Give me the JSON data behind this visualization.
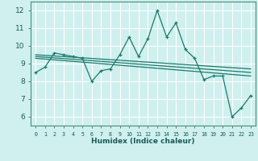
{
  "title": "",
  "xlabel": "Humidex (Indice chaleur)",
  "ylabel": "",
  "bg_color": "#cff0ee",
  "grid_color": "#ffffff",
  "line_color": "#1a7a6e",
  "xlim": [
    -0.5,
    23.5
  ],
  "ylim": [
    5.5,
    12.5
  ],
  "xticks": [
    0,
    1,
    2,
    3,
    4,
    5,
    6,
    7,
    8,
    9,
    10,
    11,
    12,
    13,
    14,
    15,
    16,
    17,
    18,
    19,
    20,
    21,
    22,
    23
  ],
  "yticks": [
    6,
    7,
    8,
    9,
    10,
    11,
    12
  ],
  "main_x": [
    0,
    1,
    2,
    3,
    4,
    5,
    6,
    7,
    8,
    9,
    10,
    11,
    12,
    13,
    14,
    15,
    16,
    17,
    18,
    19,
    20,
    21,
    22,
    23
  ],
  "main_y": [
    8.5,
    8.8,
    9.6,
    9.5,
    9.4,
    9.3,
    8.0,
    8.6,
    8.7,
    9.5,
    10.5,
    9.4,
    10.4,
    12.0,
    10.5,
    11.3,
    9.8,
    9.3,
    8.1,
    8.3,
    8.3,
    6.0,
    6.5,
    7.2
  ],
  "reg_lines": [
    {
      "x": [
        0,
        23
      ],
      "y": [
        9.3,
        8.3
      ]
    },
    {
      "x": [
        0,
        23
      ],
      "y": [
        9.4,
        8.5
      ]
    },
    {
      "x": [
        0,
        23
      ],
      "y": [
        9.5,
        8.7
      ]
    }
  ]
}
